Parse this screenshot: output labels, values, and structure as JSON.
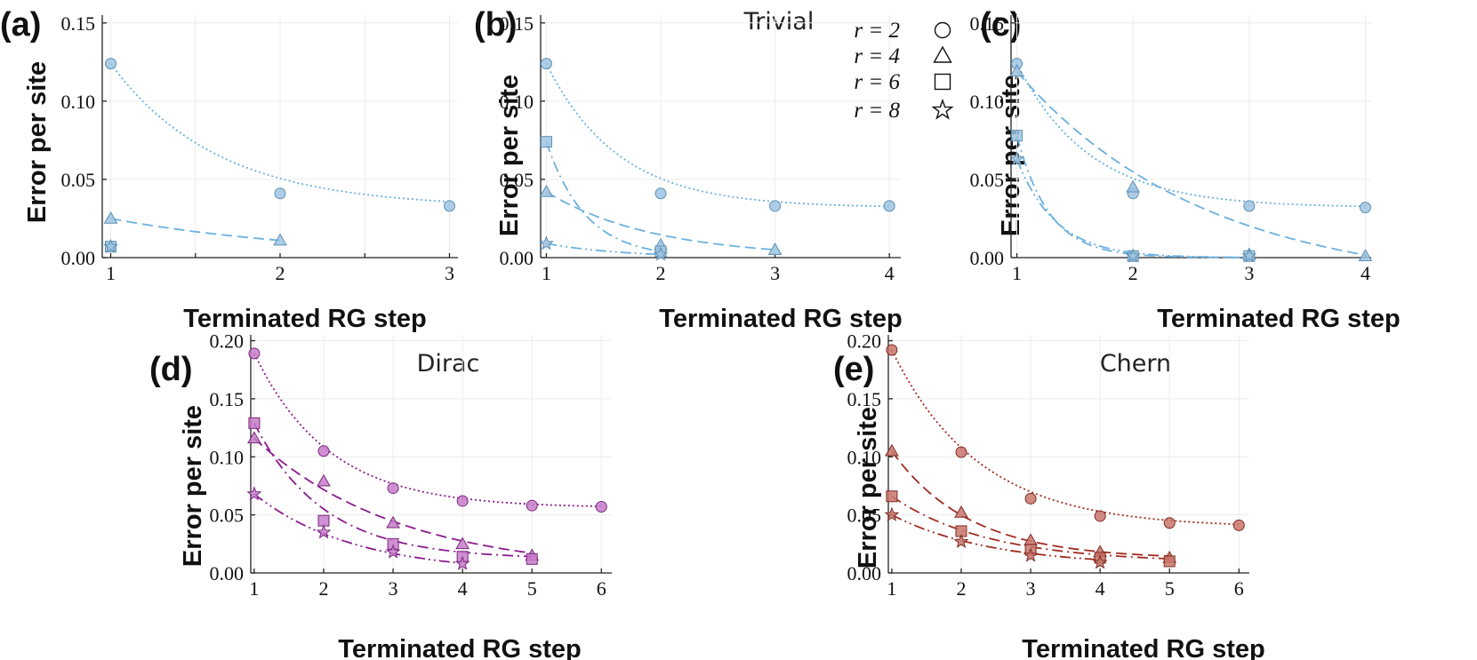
{
  "legend": {
    "entries": [
      {
        "label": "r = 2",
        "marker": "circle"
      },
      {
        "label": "r = 4",
        "marker": "triangle"
      },
      {
        "label": "r = 6",
        "marker": "square"
      },
      {
        "label": "r = 8",
        "marker": "star"
      }
    ]
  },
  "chart_data": [
    {
      "id": "a",
      "panel_label": "(a)",
      "title": "",
      "type": "line",
      "xlabel": "Terminated RG step",
      "ylabel": "Error per site",
      "xlim": [
        0.95,
        3.05
      ],
      "ylim": [
        0,
        0.155
      ],
      "xticks": [
        1,
        2,
        3
      ],
      "xtick_labels": [
        "1",
        "2",
        "3"
      ],
      "xgrid": [
        1,
        1.5,
        2,
        2.5,
        3
      ],
      "yticks": [
        0,
        0.05,
        0.1,
        0.15
      ],
      "ytick_labels": [
        "0.00",
        "0.05",
        "0.10",
        "0.15"
      ],
      "color": "#9ec4e0",
      "edge": "#5f8fb3",
      "line_color": "#6bb0de",
      "series": [
        {
          "name": "r = 2",
          "marker": "circle",
          "style": "dotted",
          "x": [
            1,
            2,
            3
          ],
          "y": [
            0.124,
            0.041,
            0.033
          ],
          "fit": {
            "a": 0.032,
            "b": 0.092,
            "k": 1.6
          }
        },
        {
          "name": "r = 4",
          "marker": "triangle",
          "style": "dashed",
          "x": [
            1,
            2
          ],
          "y": [
            0.025,
            0.011
          ],
          "fit": {
            "a": 0.0,
            "b": 0.025,
            "k": 0.82
          }
        },
        {
          "name": "r = 6",
          "marker": "square",
          "style": "none",
          "x": [
            1
          ],
          "y": [
            0.007
          ]
        },
        {
          "name": "r = 8",
          "marker": "star",
          "style": "none",
          "x": [
            1
          ],
          "y": [
            0.007
          ]
        }
      ]
    },
    {
      "id": "b",
      "panel_label": "(b)",
      "title": "Trivial",
      "type": "line",
      "xlabel": "Terminated RG step",
      "ylabel": "Error per site",
      "xlim": [
        0.95,
        4.1
      ],
      "ylim": [
        0,
        0.155
      ],
      "xticks": [
        1,
        2,
        3,
        4
      ],
      "xtick_labels": [
        "1",
        "2",
        "3",
        "4"
      ],
      "xgrid": [
        1,
        2,
        3,
        4
      ],
      "yticks": [
        0,
        0.05,
        0.1,
        0.15
      ],
      "ytick_labels": [
        "0.00",
        "0.05",
        "0.10",
        "0.15"
      ],
      "color": "#9ec4e0",
      "edge": "#5f8fb3",
      "line_color": "#6bb0de",
      "series": [
        {
          "name": "r = 2",
          "marker": "circle",
          "style": "dotted",
          "x": [
            1,
            2,
            3,
            4
          ],
          "y": [
            0.124,
            0.041,
            0.033,
            0.033
          ],
          "fit": {
            "a": 0.032,
            "b": 0.092,
            "k": 1.6
          }
        },
        {
          "name": "r = 4",
          "marker": "triangle",
          "style": "dashed",
          "x": [
            1,
            2,
            3
          ],
          "y": [
            0.042,
            0.008,
            0.005
          ],
          "fit": {
            "a": 0.0,
            "b": 0.042,
            "k": 1.06
          }
        },
        {
          "name": "r = 6",
          "marker": "square",
          "style": "dashdot",
          "x": [
            1,
            2
          ],
          "y": [
            0.074,
            0.004
          ],
          "fit": {
            "a": 0.0,
            "b": 0.074,
            "k": 2.92
          }
        },
        {
          "name": "r = 8",
          "marker": "star",
          "style": "dashdotdot",
          "x": [
            1,
            2
          ],
          "y": [
            0.009,
            0.002
          ],
          "fit": {
            "a": 0.0,
            "b": 0.009,
            "k": 1.5
          }
        }
      ]
    },
    {
      "id": "c",
      "panel_label": "(c)",
      "title": "",
      "type": "line",
      "xlabel": "Terminated RG step",
      "ylabel": "Error per site",
      "xlim": [
        0.95,
        4.05
      ],
      "ylim": [
        0,
        0.155
      ],
      "xticks": [
        1,
        2,
        3,
        4
      ],
      "xtick_labels": [
        "1",
        "2",
        "3",
        "4"
      ],
      "xgrid": [
        1,
        2,
        3,
        4
      ],
      "yticks": [
        0,
        0.05,
        0.1,
        0.15
      ],
      "ytick_labels": [
        "0.00",
        "0.05",
        "0.10",
        "0.15"
      ],
      "color": "#9ec4e0",
      "edge": "#5f8fb3",
      "line_color": "#6bb0de",
      "series": [
        {
          "name": "r = 2",
          "marker": "circle",
          "style": "dotted",
          "x": [
            1,
            2,
            3,
            4
          ],
          "y": [
            0.124,
            0.041,
            0.033,
            0.032
          ],
          "fit": {
            "a": 0.032,
            "b": 0.092,
            "k": 1.6
          }
        },
        {
          "name": "r = 4",
          "marker": "triangle",
          "style": "dashed",
          "x": [
            1,
            2,
            3,
            4
          ],
          "y": [
            0.119,
            0.045,
            0.002,
            0.001
          ],
          "fit": {
            "a": -0.02,
            "b": 0.139,
            "k": 0.62
          }
        },
        {
          "name": "r = 6",
          "marker": "square",
          "style": "dashdot",
          "x": [
            1,
            2,
            3
          ],
          "y": [
            0.078,
            0.001,
            0.001
          ],
          "fit": {
            "a": 0.0,
            "b": 0.078,
            "k": 3.6
          }
        },
        {
          "name": "r = 8",
          "marker": "star",
          "style": "dashdotdot",
          "x": [
            1,
            2,
            3
          ],
          "y": [
            0.063,
            0.001,
            0.001
          ],
          "fit": {
            "a": 0.0,
            "b": 0.063,
            "k": 3.0
          }
        }
      ]
    },
    {
      "id": "d",
      "panel_label": "(d)",
      "title": "Dirac",
      "type": "line",
      "xlabel": "Terminated RG step",
      "ylabel": "Error per site",
      "xlim": [
        0.95,
        6.15
      ],
      "ylim": [
        0,
        0.205
      ],
      "xticks": [
        1,
        2,
        3,
        4,
        5,
        6
      ],
      "xtick_labels": [
        "1",
        "2",
        "3",
        "4",
        "5",
        "6"
      ],
      "xgrid": [
        1,
        2,
        3,
        4,
        5,
        6
      ],
      "yticks": [
        0,
        0.05,
        0.1,
        0.15,
        0.2
      ],
      "ytick_labels": [
        "0.00",
        "0.05",
        "0.10",
        "0.15",
        "0.20"
      ],
      "color": "#c77cc9",
      "edge": "#7a2a7e",
      "line_color": "#8b1a8f",
      "series": [
        {
          "name": "r = 2",
          "marker": "circle",
          "style": "dotted",
          "x": [
            1,
            2,
            3,
            4,
            5,
            6
          ],
          "y": [
            0.189,
            0.105,
            0.073,
            0.062,
            0.058,
            0.057
          ],
          "fit": {
            "a": 0.056,
            "b": 0.133,
            "k": 0.93
          }
        },
        {
          "name": "r = 4",
          "marker": "triangle",
          "style": "dashed",
          "x": [
            1,
            2,
            3,
            4,
            5
          ],
          "y": [
            0.116,
            0.079,
            0.043,
            0.025,
            0.015
          ],
          "fit": {
            "a": 0.0,
            "b": 0.116,
            "k": 0.48
          }
        },
        {
          "name": "r = 6",
          "marker": "square",
          "style": "dashdot",
          "x": [
            1,
            2,
            3,
            4,
            5
          ],
          "y": [
            0.129,
            0.045,
            0.025,
            0.014,
            0.012
          ],
          "fit": {
            "a": 0.012,
            "b": 0.117,
            "k": 1.0
          }
        },
        {
          "name": "r = 8",
          "marker": "star",
          "style": "dashdotdot",
          "x": [
            1,
            2,
            3,
            4
          ],
          "y": [
            0.068,
            0.035,
            0.018,
            0.008
          ],
          "fit": {
            "a": 0.0,
            "b": 0.068,
            "k": 0.7
          }
        }
      ]
    },
    {
      "id": "e",
      "panel_label": "(e)",
      "title": "Chern",
      "type": "line",
      "xlabel": "Terminated RG step",
      "ylabel": "Error per site",
      "xlim": [
        0.95,
        6.15
      ],
      "ylim": [
        0,
        0.205
      ],
      "xticks": [
        1,
        2,
        3,
        4,
        5,
        6
      ],
      "xtick_labels": [
        "1",
        "2",
        "3",
        "4",
        "5",
        "6"
      ],
      "xgrid": [
        1,
        2,
        3,
        4,
        5,
        6
      ],
      "yticks": [
        0,
        0.05,
        0.1,
        0.15,
        0.2
      ],
      "ytick_labels": [
        "0.00",
        "0.05",
        "0.10",
        "0.15",
        "0.20"
      ],
      "color": "#c9766b",
      "edge": "#7e2d24",
      "line_color": "#a12a1f",
      "series": [
        {
          "name": "r = 2",
          "marker": "circle",
          "style": "dotted",
          "x": [
            1,
            2,
            3,
            4,
            5,
            6
          ],
          "y": [
            0.192,
            0.104,
            0.064,
            0.049,
            0.043,
            0.041
          ],
          "fit": {
            "a": 0.039,
            "b": 0.153,
            "k": 0.8
          }
        },
        {
          "name": "r = 4",
          "marker": "triangle",
          "style": "dashed",
          "x": [
            1,
            2,
            3,
            4,
            5
          ],
          "y": [
            0.105,
            0.052,
            0.028,
            0.018,
            0.013
          ],
          "fit": {
            "a": 0.012,
            "b": 0.093,
            "k": 0.9
          }
        },
        {
          "name": "r = 6",
          "marker": "square",
          "style": "dashdot",
          "x": [
            1,
            2,
            3,
            4,
            5
          ],
          "y": [
            0.066,
            0.036,
            0.02,
            0.013,
            0.01
          ],
          "fit": {
            "a": 0.009,
            "b": 0.057,
            "k": 0.72
          }
        },
        {
          "name": "r = 8",
          "marker": "star",
          "style": "dashdotdot",
          "x": [
            1,
            2,
            3,
            4
          ],
          "y": [
            0.05,
            0.027,
            0.015,
            0.009
          ],
          "fit": {
            "a": 0.006,
            "b": 0.044,
            "k": 0.7
          }
        }
      ]
    }
  ]
}
